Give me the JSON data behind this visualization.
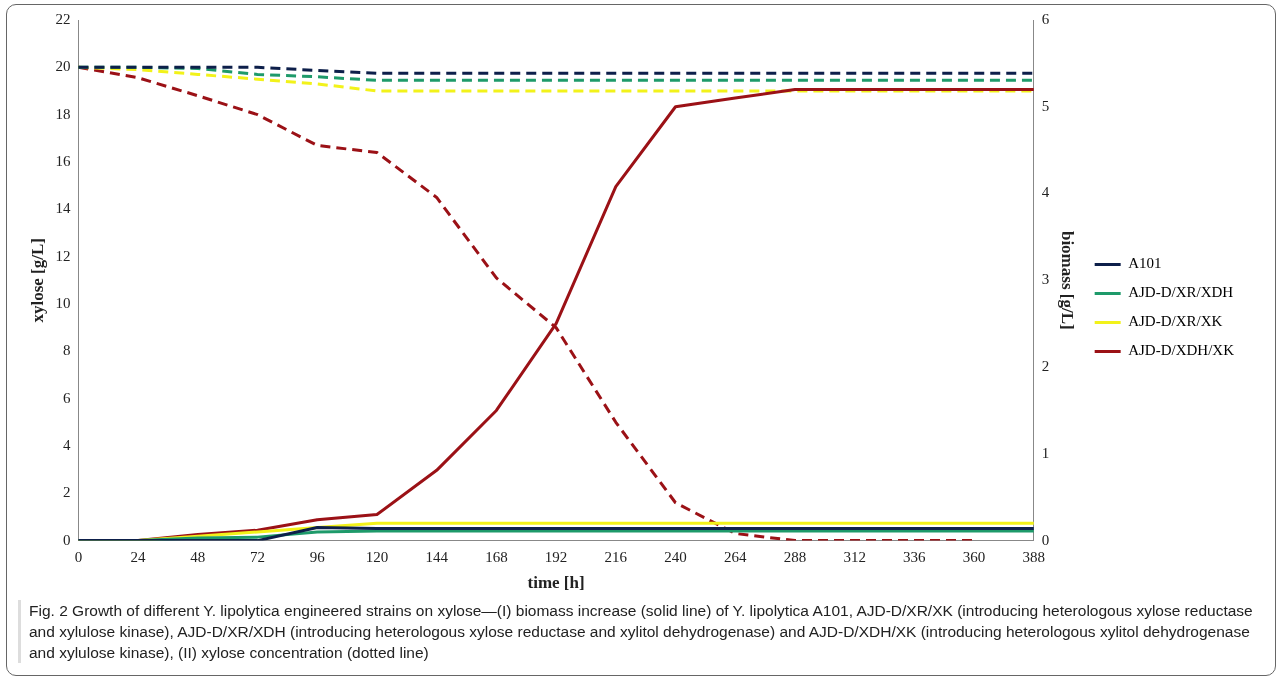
{
  "chart_data": {
    "type": "line",
    "categories": [
      "0",
      "24",
      "48",
      "72",
      "96",
      "120",
      "144",
      "168",
      "192",
      "216",
      "240",
      "264",
      "288",
      "312",
      "336",
      "360",
      "388"
    ],
    "xlabel": "time [h]",
    "ylabel": "xylose [g/L]",
    "y2label": "biomass [g/L]",
    "ylim": [
      0,
      22
    ],
    "yticks": [
      0,
      2,
      4,
      6,
      8,
      10,
      12,
      14,
      16,
      18,
      20,
      22
    ],
    "y2lim": [
      0,
      6
    ],
    "y2ticks": [
      0,
      1,
      2,
      3,
      4,
      5,
      6
    ],
    "grid": false,
    "legend": "right",
    "series": [
      {
        "name": "A101",
        "color": "#0d1f4a",
        "axis": "y2",
        "line_style": "solid",
        "values": [
          0,
          0,
          0,
          0,
          0.15,
          0.14,
          0.14,
          0.14,
          0.14,
          0.14,
          0.14,
          0.14,
          0.14,
          0.14,
          0.14,
          0.14,
          0.14
        ]
      },
      {
        "name": "AJD-D/XR/XDH",
        "color": "#1e9a6a",
        "axis": "y2",
        "line_style": "solid",
        "values": [
          0,
          0,
          0.03,
          0.04,
          0.1,
          0.11,
          0.11,
          0.11,
          0.11,
          0.11,
          0.11,
          0.11,
          0.11,
          0.11,
          0.11,
          0.11,
          0.11
        ]
      },
      {
        "name": "AJD-D/XR/XK",
        "color": "#f2f21a",
        "axis": "y2",
        "line_style": "solid",
        "values": [
          0,
          0,
          0.05,
          0.1,
          0.15,
          0.2,
          0.2,
          0.2,
          0.2,
          0.2,
          0.2,
          0.2,
          0.2,
          0.2,
          0.2,
          0.2,
          0.2
        ]
      },
      {
        "name": "AJD-D/XDH/XK",
        "color": "#9b1116",
        "axis": "y2",
        "line_style": "solid",
        "values": [
          0,
          0,
          0.07,
          0.12,
          0.24,
          0.3,
          0.81,
          1.5,
          2.5,
          4.08,
          5.0,
          5.1,
          5.2,
          5.2,
          5.2,
          5.2,
          5.2
        ]
      },
      {
        "color": "#0d1f4a",
        "line_style": "dashed",
        "values": [
          20,
          20,
          20,
          20,
          19.87,
          19.75,
          19.75,
          19.75,
          19.75,
          19.75,
          19.75,
          19.75,
          19.75,
          19.75,
          19.75,
          19.75,
          19.75
        ]
      },
      {
        "color": "#1e9a6a",
        "line_style": "dashed",
        "values": [
          20,
          20,
          19.95,
          19.7,
          19.6,
          19.45,
          19.45,
          19.45,
          19.45,
          19.45,
          19.45,
          19.45,
          19.45,
          19.45,
          19.45,
          19.45,
          19.45
        ]
      },
      {
        "color": "#f2f21a",
        "line_style": "dashed",
        "values": [
          20,
          19.9,
          19.7,
          19.5,
          19.3,
          19.0,
          19.0,
          19.0,
          19.0,
          19.0,
          19.0,
          19.0,
          19.0,
          19.0,
          19.0,
          19.0,
          19.0
        ]
      },
      {
        "color": "#9b1116",
        "line_style": "dashed",
        "values": [
          20,
          19.56,
          18.8,
          18.0,
          16.7,
          16.4,
          14.5,
          11.1,
          9.0,
          5.0,
          1.6,
          0.3,
          0,
          0,
          0,
          0,
          null
        ]
      }
    ],
    "annotations": [
      "Fig. 2  Growth of different Y. lipolytica engineered strains on xylose—(I) biomass increase (solid line) of Y. lipolytica A101, AJD-D/XR/XK (introducing heterologous xylose reductase and xylulose kinase), AJD-D/XR/XDH (introducing heterologous xylose reductase and xylitol dehydrogenase) and AJD-D/XDH/XK (introducing heterologous xylitol dehydrogenase and xylulose kinase), (II) xylose concentration (dotted line)"
    ]
  }
}
